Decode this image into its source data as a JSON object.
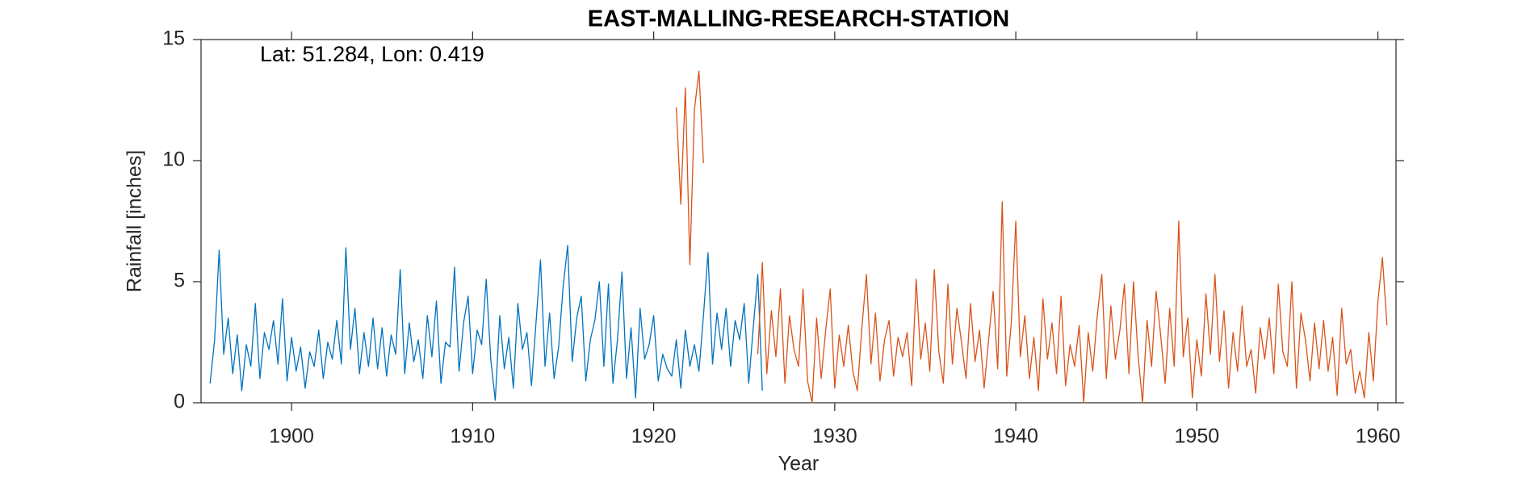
{
  "chart_data": {
    "type": "line",
    "title": "EAST-MALLING-RESEARCH-STATION",
    "annotation": "Lat: 51.284, Lon: 0.419",
    "xlabel": "Year",
    "ylabel": "Rainfall [inches]",
    "xlim": [
      1895,
      1961
    ],
    "ylim": [
      0,
      15
    ],
    "xticks": [
      1900,
      1910,
      1920,
      1930,
      1940,
      1950,
      1960
    ],
    "yticks": [
      0,
      5,
      10,
      15
    ],
    "grid": false,
    "series": [
      {
        "color": "#0072bd",
        "x": [
          1895.5,
          1895.75,
          1896,
          1896.25,
          1896.5,
          1896.75,
          1897,
          1897.25,
          1897.5,
          1897.75,
          1898,
          1898.25,
          1898.5,
          1898.75,
          1899,
          1899.25,
          1899.5,
          1899.75,
          1900,
          1900.25,
          1900.5,
          1900.75,
          1901,
          1901.25,
          1901.5,
          1901.75,
          1902,
          1902.25,
          1902.5,
          1902.75,
          1903,
          1903.25,
          1903.5,
          1903.75,
          1904,
          1904.25,
          1904.5,
          1904.75,
          1905,
          1905.25,
          1905.5,
          1905.75,
          1906,
          1906.25,
          1906.5,
          1906.75,
          1907,
          1907.25,
          1907.5,
          1907.75,
          1908,
          1908.25,
          1908.5,
          1908.75,
          1909,
          1909.25,
          1909.5,
          1909.75,
          1910,
          1910.25,
          1910.5,
          1910.75,
          1911,
          1911.25,
          1911.5,
          1911.75,
          1912,
          1912.25,
          1912.5,
          1912.75,
          1913,
          1913.25,
          1913.5,
          1913.75,
          1914,
          1914.25,
          1914.5,
          1914.75,
          1915,
          1915.25,
          1915.5,
          1915.75,
          1916,
          1916.25,
          1916.5,
          1916.75,
          1917,
          1917.25,
          1917.5,
          1917.75,
          1918,
          1918.25,
          1918.5,
          1918.75,
          1919,
          1919.25,
          1919.5,
          1919.75,
          1920,
          1920.25,
          1920.5,
          1920.75,
          1921,
          1921.25,
          1921.5,
          1921.75,
          1922,
          1922.25,
          1922.5,
          1922.75,
          1923,
          1923.25,
          1923.5,
          1923.75,
          1924,
          1924.25,
          1924.5,
          1924.75,
          1925,
          1925.25,
          1925.5,
          1925.75,
          1926
        ],
        "values": [
          0.8,
          2.6,
          6.3,
          2.0,
          3.5,
          1.2,
          2.8,
          0.5,
          2.4,
          1.5,
          4.1,
          1.0,
          2.9,
          2.2,
          3.4,
          1.6,
          4.3,
          0.9,
          2.7,
          1.3,
          2.3,
          0.6,
          2.1,
          1.5,
          3.0,
          1.0,
          2.5,
          1.8,
          3.4,
          1.6,
          6.4,
          2.2,
          3.9,
          1.2,
          2.9,
          1.5,
          3.5,
          1.4,
          3.1,
          1.1,
          2.8,
          2.0,
          5.5,
          1.2,
          3.3,
          1.7,
          2.6,
          1.0,
          3.6,
          1.9,
          4.2,
          0.8,
          2.5,
          2.3,
          5.6,
          1.3,
          3.3,
          4.4,
          1.2,
          3.0,
          2.4,
          5.1,
          1.8,
          0.1,
          3.6,
          1.4,
          2.7,
          0.6,
          4.1,
          2.2,
          2.9,
          0.7,
          3.3,
          5.9,
          1.5,
          3.7,
          1.0,
          2.3,
          4.8,
          6.5,
          1.7,
          3.5,
          4.4,
          0.9,
          2.6,
          3.4,
          5.0,
          1.5,
          4.9,
          0.8,
          2.6,
          5.4,
          1.0,
          3.1,
          0.2,
          3.9,
          1.8,
          2.4,
          3.6,
          0.9,
          2.0,
          1.4,
          1.1,
          2.6,
          0.6,
          3.0,
          1.5,
          2.4,
          1.3,
          3.6,
          6.2,
          1.6,
          3.7,
          2.2,
          3.9,
          1.5,
          3.4,
          2.6,
          4.1,
          0.8,
          3.1,
          5.3,
          0.5
        ]
      },
      {
        "color": "#d95319",
        "x": [
          1921.25,
          1921.5,
          1921.75,
          1922,
          1922.25,
          1922.5,
          1922.75,
          null,
          1925.75,
          1926,
          1926.25,
          1926.5,
          1926.75,
          1927,
          1927.25,
          1927.5,
          1927.75,
          1928,
          1928.25,
          1928.5,
          1928.75,
          1929,
          1929.25,
          1929.5,
          1929.75,
          1930,
          1930.25,
          1930.5,
          1930.75,
          1931,
          1931.25,
          1931.5,
          1931.75,
          1932,
          1932.25,
          1932.5,
          1932.75,
          1933,
          1933.25,
          1933.5,
          1933.75,
          1934,
          1934.25,
          1934.5,
          1934.75,
          1935,
          1935.25,
          1935.5,
          1935.75,
          1936,
          1936.25,
          1936.5,
          1936.75,
          1937,
          1937.25,
          1937.5,
          1937.75,
          1938,
          1938.25,
          1938.5,
          1938.75,
          1939,
          1939.25,
          1939.5,
          1939.75,
          1940,
          1940.25,
          1940.5,
          1940.75,
          1941,
          1941.25,
          1941.5,
          1941.75,
          1942,
          1942.25,
          1942.5,
          1942.75,
          1943,
          1943.25,
          1943.5,
          1943.75,
          1944,
          1944.25,
          1944.5,
          1944.75,
          1945,
          1945.25,
          1945.5,
          1945.75,
          1946,
          1946.25,
          1946.5,
          1946.75,
          1947,
          1947.25,
          1947.5,
          1947.75,
          1948,
          1948.25,
          1948.5,
          1948.75,
          1949,
          1949.25,
          1949.5,
          1949.75,
          1950,
          1950.25,
          1950.5,
          1950.75,
          1951,
          1951.25,
          1951.5,
          1951.75,
          1952,
          1952.25,
          1952.5,
          1952.75,
          1953,
          1953.25,
          1953.5,
          1953.75,
          1954,
          1954.25,
          1954.5,
          1954.75,
          1955,
          1955.25,
          1955.5,
          1955.75,
          1956,
          1956.25,
          1956.5,
          1956.75,
          1957,
          1957.25,
          1957.5,
          1957.75,
          1958,
          1958.25,
          1958.5,
          1958.75,
          1959,
          1959.25,
          1959.5,
          1959.75,
          1960,
          1960.25,
          1960.5
        ],
        "values": [
          12.2,
          8.2,
          13.0,
          5.7,
          12.1,
          13.7,
          9.9,
          null,
          2.0,
          5.8,
          1.2,
          3.8,
          1.9,
          4.7,
          0.8,
          3.6,
          2.2,
          1.5,
          4.7,
          0.9,
          0.0,
          3.5,
          1.0,
          3.0,
          4.7,
          0.6,
          2.8,
          1.5,
          3.2,
          1.3,
          0.5,
          3.1,
          5.3,
          1.6,
          3.7,
          0.9,
          2.6,
          3.4,
          1.1,
          2.7,
          1.9,
          2.9,
          0.7,
          5.1,
          1.8,
          3.3,
          1.3,
          5.5,
          2.1,
          0.8,
          4.9,
          1.6,
          3.9,
          2.5,
          1.0,
          4.1,
          1.7,
          3.0,
          0.6,
          2.6,
          4.6,
          1.4,
          8.3,
          1.1,
          3.3,
          7.5,
          1.9,
          3.6,
          1.0,
          2.7,
          0.5,
          4.3,
          1.8,
          3.3,
          1.2,
          4.4,
          0.7,
          2.4,
          1.5,
          3.2,
          0.0,
          2.9,
          1.3,
          3.6,
          5.3,
          1.0,
          4.0,
          1.8,
          3.0,
          4.9,
          1.2,
          5.0,
          2.0,
          0.0,
          3.4,
          1.5,
          4.6,
          2.8,
          0.8,
          3.9,
          1.5,
          7.5,
          1.9,
          3.5,
          0.2,
          2.6,
          1.1,
          4.5,
          2.0,
          5.3,
          1.7,
          3.8,
          0.6,
          2.9,
          1.3,
          4.0,
          1.5,
          2.2,
          0.4,
          3.1,
          1.8,
          3.5,
          1.2,
          4.9,
          2.1,
          1.5,
          5.0,
          0.6,
          3.7,
          2.6,
          0.9,
          3.3,
          1.4,
          3.4,
          1.3,
          2.7,
          0.3,
          3.9,
          1.6,
          2.2,
          0.4,
          1.3,
          0.2,
          2.9,
          0.9,
          4.2,
          6.0,
          3.2
        ]
      }
    ]
  }
}
